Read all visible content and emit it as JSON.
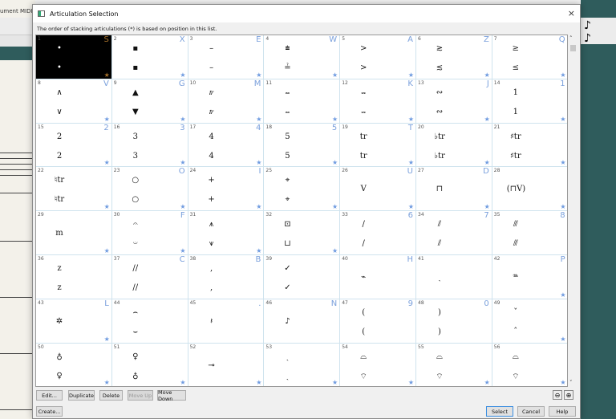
{
  "background_app": {
    "menu_text": "ument  MIDI",
    "toolbar_right": "♪ ♪"
  },
  "dialog": {
    "title": "Articulation Selection",
    "close_label": "×",
    "hint": "The order of stacking articulations (*) is based on position in this list.",
    "selected_index": 1,
    "cells": [
      {
        "n": "1",
        "key": "S",
        "top": "•",
        "bot": "•",
        "star": true
      },
      {
        "n": "2",
        "key": "X",
        "top": "▪",
        "bot": "▪",
        "star": true
      },
      {
        "n": "3",
        "key": "E",
        "top": "–",
        "bot": "–",
        "star": true
      },
      {
        "n": "4",
        "key": "W",
        "top": "⩧",
        "bot": "≟",
        "star": true
      },
      {
        "n": "5",
        "key": "A",
        "top": ">",
        "bot": ">",
        "star": true
      },
      {
        "n": "6",
        "key": "Z",
        "top": "≳",
        "bot": "≲",
        "star": true
      },
      {
        "n": "7",
        "key": "Q",
        "top": "≥",
        "bot": "≤",
        "star": true
      },
      {
        "n": "8",
        "key": "V",
        "top": "∧",
        "bot": "∨",
        "star": true
      },
      {
        "n": "9",
        "key": "G",
        "top": "▲",
        "bot": "▼",
        "star": true
      },
      {
        "n": "10",
        "key": "M",
        "top": "𝆖",
        "bot": "𝆖",
        "star": true
      },
      {
        "n": "11",
        "key": "",
        "top": "𝆗",
        "bot": "𝆗",
        "star": true
      },
      {
        "n": "12",
        "key": "K",
        "top": "𝆘",
        "bot": "𝆘",
        "star": true
      },
      {
        "n": "13",
        "key": "J",
        "top": "∾",
        "bot": "∾",
        "star": true
      },
      {
        "n": "14",
        "key": "1",
        "top": "1",
        "bot": "1",
        "star": true
      },
      {
        "n": "15",
        "key": "2",
        "top": "2",
        "bot": "2",
        "star": true
      },
      {
        "n": "16",
        "key": "3",
        "top": "3",
        "bot": "3",
        "star": true
      },
      {
        "n": "17",
        "key": "4",
        "top": "4",
        "bot": "4",
        "star": true
      },
      {
        "n": "18",
        "key": "5",
        "top": "5",
        "bot": "5",
        "star": true
      },
      {
        "n": "19",
        "key": "T",
        "top": "tr",
        "bot": "tr",
        "star": true
      },
      {
        "n": "20",
        "key": "",
        "top": "♭tr",
        "bot": "♭tr",
        "star": true
      },
      {
        "n": "21",
        "key": "",
        "top": "♯tr",
        "bot": "♯tr",
        "star": true
      },
      {
        "n": "22",
        "key": "",
        "top": "♮tr",
        "bot": "♮tr",
        "star": true
      },
      {
        "n": "23",
        "key": "O",
        "top": "○",
        "bot": "○",
        "star": true
      },
      {
        "n": "24",
        "key": "I",
        "top": "+",
        "bot": "+",
        "star": true
      },
      {
        "n": "25",
        "key": "",
        "top": "⌖",
        "bot": "⌖",
        "star": true
      },
      {
        "n": "26",
        "key": "U",
        "mid": "V",
        "star": true
      },
      {
        "n": "27",
        "key": "D",
        "mid": "⊓",
        "star": true
      },
      {
        "n": "28",
        "key": "",
        "mid": "(⊓V)",
        "star": true
      },
      {
        "n": "29",
        "key": "",
        "mid": "m",
        "star": true
      },
      {
        "n": "30",
        "key": "F",
        "top": "𝄐",
        "bot": "𝄑",
        "star": true
      },
      {
        "n": "31",
        "key": "",
        "top": "⩚",
        "bot": "⩛",
        "star": true
      },
      {
        "n": "32",
        "key": "",
        "top": "⊡",
        "bot": "⊔",
        "star": true
      },
      {
        "n": "33",
        "key": "6",
        "top": "/",
        "bot": "/",
        "star": false
      },
      {
        "n": "34",
        "key": "7",
        "top": "⫽",
        "bot": "⫽",
        "star": false
      },
      {
        "n": "35",
        "key": "8",
        "top": "⫻",
        "bot": "⫻",
        "star": false
      },
      {
        "n": "36",
        "key": "",
        "top": "z",
        "bot": "z",
        "star": false
      },
      {
        "n": "37",
        "key": "C",
        "top": "//",
        "bot": "//",
        "star": false
      },
      {
        "n": "38",
        "key": "B",
        "top": ",",
        "bot": ",",
        "star": false
      },
      {
        "n": "39",
        "key": "",
        "top": "✓",
        "bot": "✓",
        "star": false
      },
      {
        "n": "40",
        "key": "H",
        "mid": "⌁",
        "star": false
      },
      {
        "n": "41",
        "key": "",
        "mid": "ˎ",
        "star": false
      },
      {
        "n": "42",
        "key": "P",
        "mid": "𝆮",
        "star": true
      },
      {
        "n": "43",
        "key": "L",
        "mid": "✲",
        "star": true
      },
      {
        "n": "44",
        "key": "",
        "top": "⌢",
        "bot": "⌣",
        "star": false
      },
      {
        "n": "45",
        "key": ".",
        "mid": "𝄽",
        "star": false
      },
      {
        "n": "46",
        "key": "N",
        "mid": "♪",
        "star": false
      },
      {
        "n": "47",
        "key": "9",
        "top": "(",
        "bot": "(",
        "star": false
      },
      {
        "n": "48",
        "key": "0",
        "top": ")",
        "bot": ")",
        "star": false
      },
      {
        "n": "49",
        "key": "",
        "top": "ˇ",
        "bot": "ˆ",
        "star": true
      },
      {
        "n": "50",
        "key": "",
        "top": "♁",
        "bot": "♀",
        "star": true
      },
      {
        "n": "51",
        "key": "",
        "top": "♀",
        "bot": "♁",
        "star": true
      },
      {
        "n": "52",
        "key": "",
        "mid": "⊸",
        "star": true
      },
      {
        "n": "53",
        "key": "",
        "top": "ˏ",
        "bot": "ˎ",
        "star": true
      },
      {
        "n": "54",
        "key": "",
        "top": "⌓",
        "bot": "⌔",
        "star": true
      },
      {
        "n": "55",
        "key": "",
        "top": "⌓",
        "bot": "⌔",
        "star": true
      },
      {
        "n": "56",
        "key": "",
        "top": "⌓",
        "bot": "⌔",
        "star": true
      }
    ],
    "buttons": {
      "edit": "Edit...",
      "duplicate": "Duplicate",
      "delete": "Delete",
      "move_up": "Move Up",
      "move_down": "Move Down",
      "create": "Create...",
      "select": "Select",
      "cancel": "Cancel",
      "help": "Help"
    },
    "star_glyph": "★",
    "colors": {
      "shortcut_key": "#7aa0dc",
      "selected_bg": "#000000",
      "selected_accent": "#a5702a"
    }
  }
}
